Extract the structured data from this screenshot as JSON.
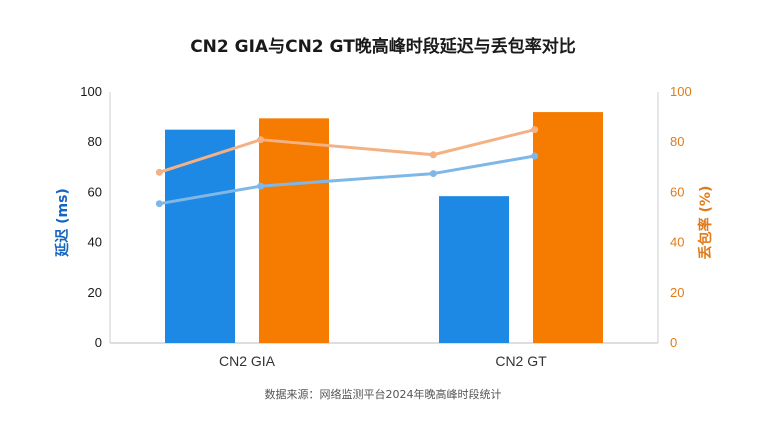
{
  "chart_data": {
    "type": "bar",
    "title": "CN2 GIA与CN2 GT晚高峰时段延迟与丢包率对比",
    "categories": [
      "CN2 GIA",
      "CN2 GT"
    ],
    "y_left": {
      "label": "延迟 (ms)",
      "range": [
        0,
        100
      ],
      "ticks": [
        "0",
        "20",
        "40",
        "60",
        "80",
        "100"
      ],
      "color": "#1565c0"
    },
    "y_right": {
      "label": "丢包率 (%)",
      "range": [
        0,
        100
      ],
      "ticks": [
        "0",
        "20",
        "40",
        "60",
        "80",
        "100"
      ],
      "color": "#e07b1a"
    },
    "bar_series": [
      {
        "values": [
          85,
          58.5
        ],
        "color": "#1e88e5",
        "axis": "left"
      },
      {
        "values": [
          89.5,
          92
        ],
        "color": "#f57c00",
        "axis": "right"
      }
    ],
    "line_series": [
      {
        "x": [
          0.18,
          0.55,
          1.18,
          1.55
        ],
        "values": [
          68,
          81,
          75,
          85
        ],
        "color": "#f4b183"
      },
      {
        "x": [
          0.18,
          0.55,
          1.18,
          1.55
        ],
        "values": [
          55.5,
          62.5,
          67.5,
          74.5
        ],
        "color": "#7fb8e6"
      }
    ],
    "grid": false,
    "source": "数据来源：网络监测平台2024年晚高峰时段统计"
  }
}
